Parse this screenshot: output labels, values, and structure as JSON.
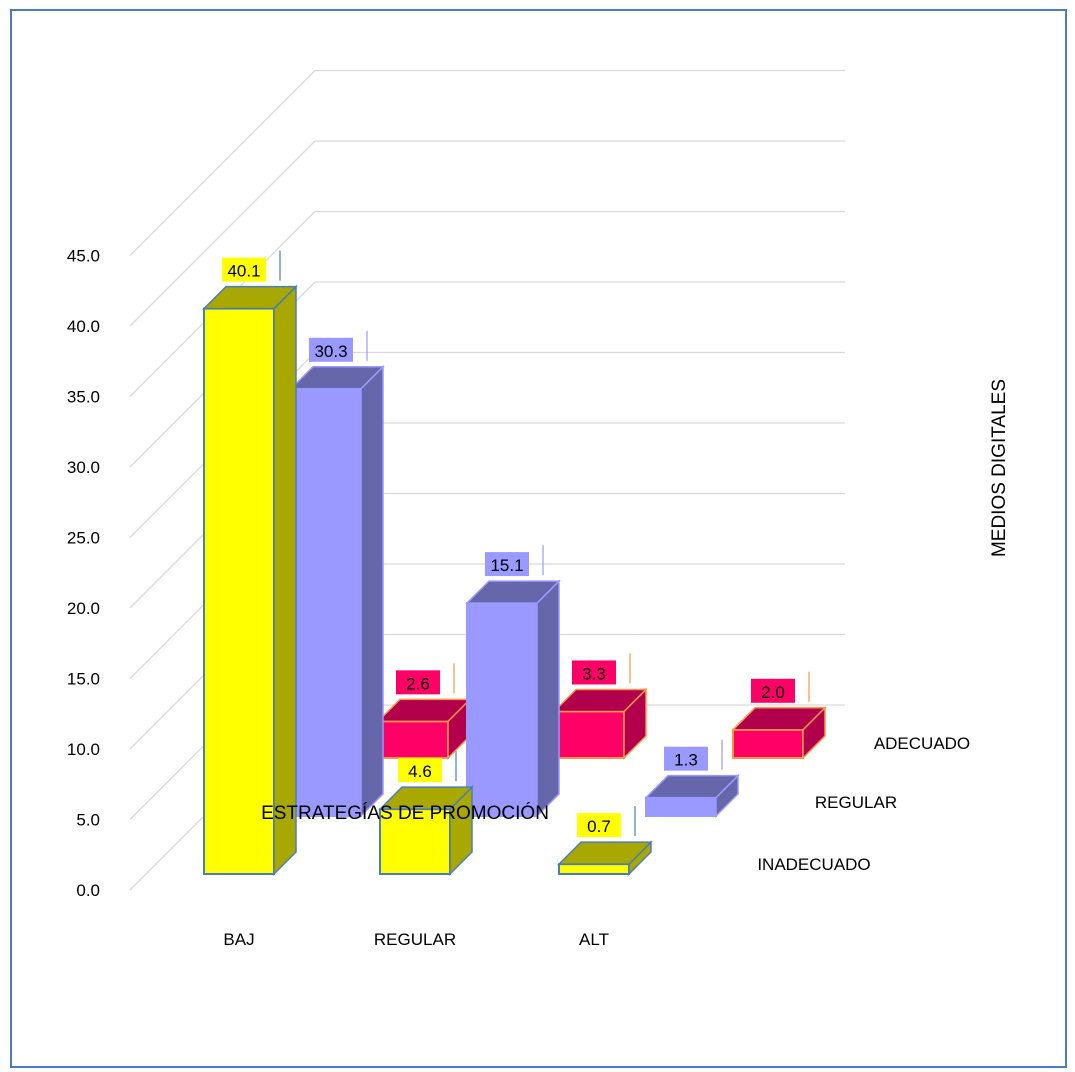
{
  "chart_data": {
    "type": "bar",
    "style": "3d-column",
    "categories": [
      "BAJ",
      "REGULAR",
      "ALT"
    ],
    "series": [
      {
        "name": "INADECUADO",
        "values": [
          40.1,
          4.6,
          0.7
        ],
        "color": "#ffff00",
        "side_color": "#a8a800",
        "border_color": "#4a7ebb"
      },
      {
        "name": "REGULAR",
        "values": [
          30.3,
          15.1,
          1.3
        ],
        "color": "#9999ff",
        "side_color": "#6666aa",
        "border_color": "#9999ff"
      },
      {
        "name": "ADECUADO",
        "values": [
          2.6,
          3.3,
          2.0
        ],
        "color": "#ff0066",
        "side_color": "#b3004d",
        "border_color": "#f79646"
      }
    ],
    "y_ticks": [
      "0.0",
      "5.0",
      "10.0",
      "15.0",
      "20.0",
      "25.0",
      "30.0",
      "35.0",
      "40.0",
      "45.0"
    ],
    "ylim": [
      0,
      45
    ],
    "xlabel": "ESTRATEGÍAS DE PROMOCIÓN",
    "zlabel": "MEDIOS DIGITALES",
    "grid": true,
    "gridline_color": "#d9d9d9"
  }
}
